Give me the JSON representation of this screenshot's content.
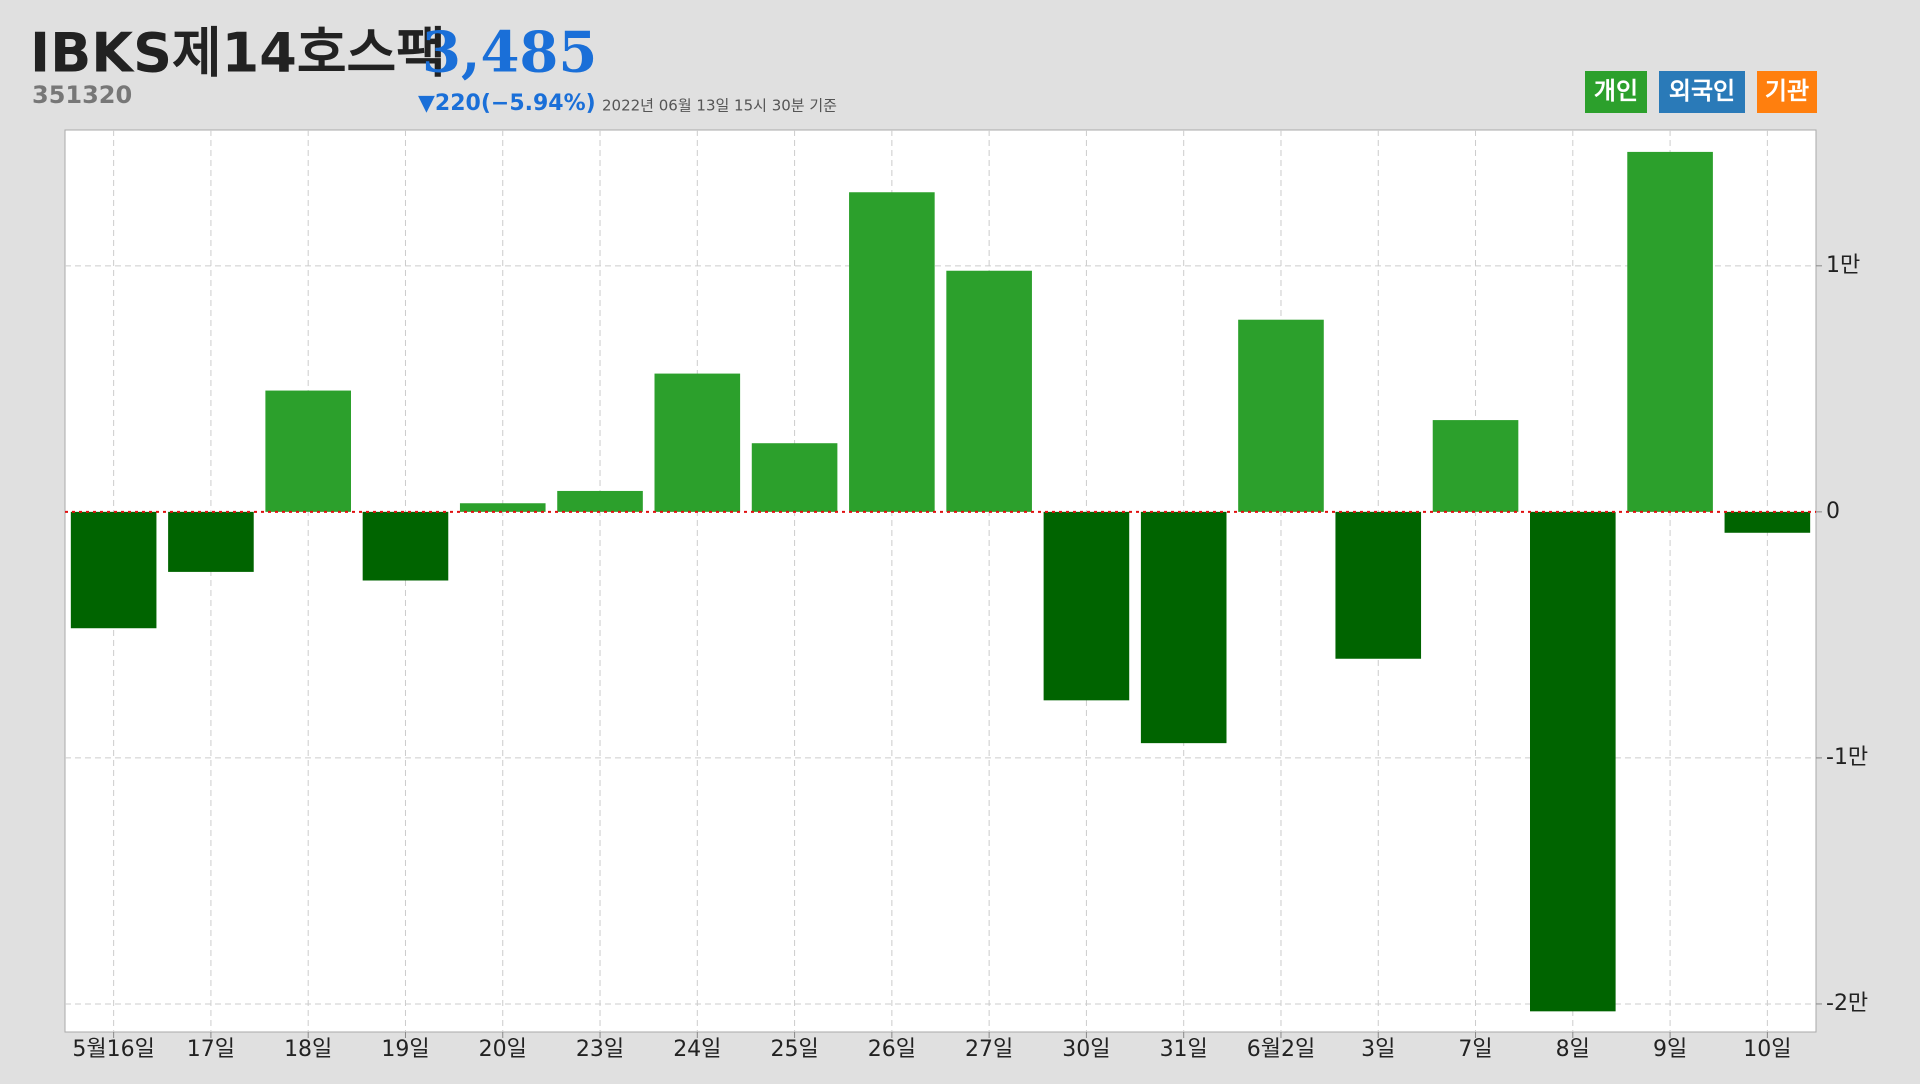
{
  "header": {
    "title": "IBKS제14호스팩",
    "code": "351320",
    "price": "3,485",
    "change": "▼220(−5.94%)",
    "timestamp": "2022년 06월 13일 15시 30분 기준"
  },
  "chart_data": {
    "type": "bar",
    "categories": [
      "5월16일",
      "17일",
      "18일",
      "19일",
      "20일",
      "23일",
      "24일",
      "25일",
      "26일",
      "27일",
      "30일",
      "31일",
      "6월2일",
      "3일",
      "7일",
      "8일",
      "9일",
      "10일"
    ],
    "values": [
      -4730,
      -2440,
      4930,
      -2790,
      350,
      850,
      5620,
      2790,
      12990,
      9800,
      -7660,
      -9400,
      7810,
      -5970,
      3730,
      -20300,
      14630,
      -850
    ],
    "positive_color": "#2ca02c",
    "negative_color": "#006400",
    "legend": [
      {
        "name": "개인",
        "color": "#2ca02c"
      },
      {
        "name": "외국인",
        "color": "#2a7ab8"
      },
      {
        "name": "기관",
        "color": "#ff7f0e"
      }
    ],
    "ylim": [
      -21140,
      15520
    ],
    "yticks": [
      {
        "value": -20000,
        "label": "-2만"
      },
      {
        "value": -10000,
        "label": "-1만"
      },
      0,
      {
        "value": 10000,
        "label": "1만"
      }
    ],
    "grid": true
  }
}
